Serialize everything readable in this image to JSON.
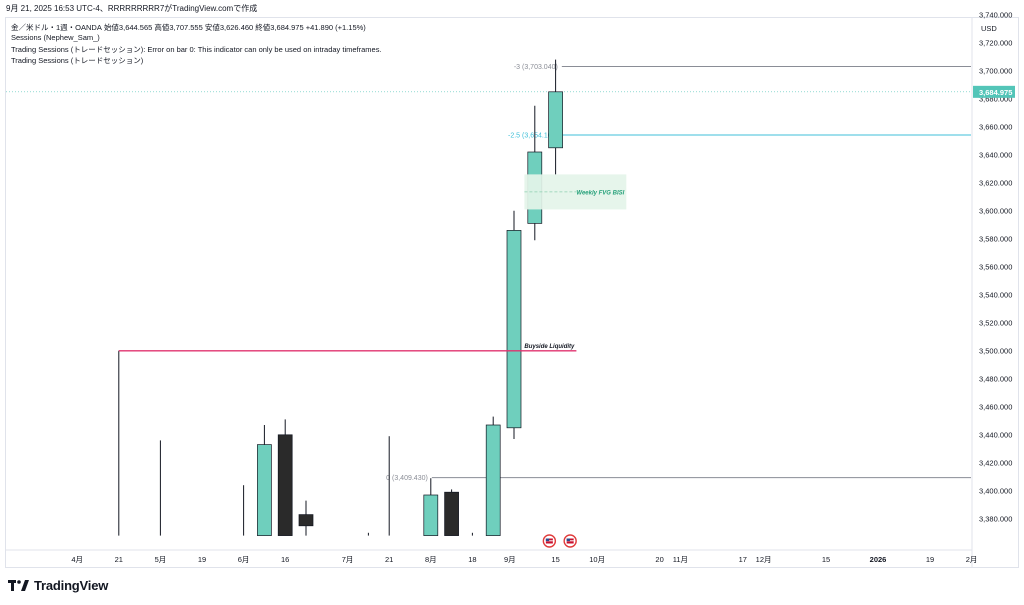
{
  "caption": "9月 21, 2025 16:53 UTC-4、RRRRRRRRR7がTradingView.comで作成",
  "legend": {
    "symbol": "金／米ドル・1週・OANDA",
    "ohlc_text": "始値3,644.565  高値3,707.555  安値3,626.460  終値3,684.975  +41.890 (+1.15%)",
    "line2": "Sessions (Nephew_Sam_)",
    "line3": "Trading Sessions (トレードセッション): Error on bar 0: This indicator can only be used on intraday timeframes.",
    "line4": "Trading Sessions (トレードセッション)"
  },
  "footer": {
    "logo_text": "TradingView"
  },
  "colors": {
    "bull": "#6fcfbd",
    "bear": "#2a2a2a",
    "liquidity": "#e0336f",
    "fib_cyan": "#3fbfd8",
    "fib_gray": "#8a8d96",
    "fvg_fill": "#e3f4e9",
    "fvg_text": "#26a17a",
    "price_tag": "#53c5b8"
  },
  "chart_data": {
    "type": "candlestick",
    "currency": "USD",
    "y_ticks": [
      3380,
      3400,
      3420,
      3440,
      3460,
      3480,
      3500,
      3520,
      3540,
      3560,
      3580,
      3600,
      3620,
      3640,
      3660,
      3680,
      3700,
      3720,
      3740
    ],
    "y_tick_labels": [
      "3,380.000",
      "3,400.000",
      "3,420.000",
      "3,440.000",
      "3,460.000",
      "3,480.000",
      "3,500.000",
      "3,520.000",
      "3,540.000",
      "3,560.000",
      "3,580.000",
      "3,600.000",
      "3,620.000",
      "3,640.000",
      "3,660.000",
      "3,680.000",
      "3,700.000",
      "3,720.000",
      "3,740.000"
    ],
    "ylim": [
      3368,
      3748
    ],
    "x_labels": [
      {
        "label": "4月",
        "slot": -1,
        "bold": false
      },
      {
        "label": "21",
        "slot": 1,
        "bold": false
      },
      {
        "label": "5月",
        "slot": 3,
        "bold": false
      },
      {
        "label": "19",
        "slot": 5,
        "bold": false
      },
      {
        "label": "6月",
        "slot": 7,
        "bold": false
      },
      {
        "label": "16",
        "slot": 9,
        "bold": false
      },
      {
        "label": "7月",
        "slot": 12,
        "bold": false
      },
      {
        "label": "21",
        "slot": 14,
        "bold": false
      },
      {
        "label": "8月",
        "slot": 16,
        "bold": false
      },
      {
        "label": "18",
        "slot": 18,
        "bold": false
      },
      {
        "label": "9月",
        "slot": 19.8,
        "bold": false
      },
      {
        "label": "15",
        "slot": 22,
        "bold": false
      },
      {
        "label": "10月",
        "slot": 24,
        "bold": false
      },
      {
        "label": "20",
        "slot": 27,
        "bold": false
      },
      {
        "label": "11月",
        "slot": 28,
        "bold": false
      },
      {
        "label": "17",
        "slot": 31,
        "bold": false
      },
      {
        "label": "12月",
        "slot": 32,
        "bold": false
      },
      {
        "label": "15",
        "slot": 35,
        "bold": false
      },
      {
        "label": "2026",
        "slot": 37.5,
        "bold": true
      },
      {
        "label": "19",
        "slot": 40,
        "bold": false
      },
      {
        "label": "2月",
        "slot": 42,
        "bold": false
      }
    ],
    "candles": [
      {
        "slot": 1,
        "open": 3368,
        "high": 3500,
        "low": 3368,
        "close": 3368,
        "dir": "wick"
      },
      {
        "slot": 3,
        "open": 3368,
        "high": 3436,
        "low": 3368,
        "close": 3368,
        "dir": "wick"
      },
      {
        "slot": 7,
        "open": 3368,
        "high": 3404,
        "low": 3368,
        "close": 3368,
        "dir": "wick"
      },
      {
        "slot": 8,
        "open": 3368,
        "high": 3447,
        "low": 3368,
        "close": 3433,
        "dir": "bull"
      },
      {
        "slot": 9,
        "open": 3440,
        "high": 3451,
        "low": 3368,
        "close": 3368,
        "dir": "bear"
      },
      {
        "slot": 10,
        "open": 3383,
        "high": 3393,
        "low": 3368,
        "close": 3375,
        "dir": "bear"
      },
      {
        "slot": 13,
        "open": 3368,
        "high": 3370,
        "low": 3368,
        "close": 3368,
        "dir": "wick"
      },
      {
        "slot": 14,
        "open": 3368,
        "high": 3439,
        "low": 3368,
        "close": 3368,
        "dir": "wick"
      },
      {
        "slot": 16,
        "open": 3368,
        "high": 3409,
        "low": 3368,
        "close": 3397,
        "dir": "bull"
      },
      {
        "slot": 17,
        "open": 3399,
        "high": 3401,
        "low": 3368,
        "close": 3368,
        "dir": "bear"
      },
      {
        "slot": 18,
        "open": 3368,
        "high": 3370,
        "low": 3368,
        "close": 3368,
        "dir": "wick"
      },
      {
        "slot": 19,
        "open": 3368,
        "high": 3453,
        "low": 3368,
        "close": 3447,
        "dir": "bull"
      },
      {
        "slot": 20,
        "open": 3445,
        "high": 3600,
        "low": 3437,
        "close": 3586,
        "dir": "bull"
      },
      {
        "slot": 21,
        "open": 3591,
        "high": 3675,
        "low": 3579,
        "close": 3642,
        "dir": "bull"
      },
      {
        "slot": 22,
        "open": 3645,
        "high": 3708,
        "low": 3626,
        "close": 3685,
        "dir": "bull"
      }
    ],
    "levels": [
      {
        "name": "fib-minus-3",
        "label": "-3 (3,703.040)",
        "value": 3703.04,
        "color": "fib_gray",
        "from_slot": 22.3
      },
      {
        "name": "fib-minus-2-5",
        "label": "-2.5 (3,654.105)",
        "value": 3654.105,
        "color": "fib_cyan",
        "from_slot": 22.3
      },
      {
        "name": "fib-0",
        "label": "0 (3,409.430)",
        "value": 3409.43,
        "color": "fib_gray",
        "from_slot": 16.05
      }
    ],
    "liquidity": {
      "label": "Buyside Liquidity",
      "value": 3500,
      "from_slot": 1,
      "to_slot": 23
    },
    "fvg": {
      "label": "Weekly FVG BISI",
      "top": 3626,
      "bottom": 3601,
      "from_slot": 20.5,
      "to_slot": 25.4
    },
    "last_price": {
      "label": "3,684.975",
      "value": 3684.975
    },
    "event_markers": [
      {
        "slot": 21.7,
        "name": "us-flag-icon"
      },
      {
        "slot": 22.7,
        "name": "us-flag-icon"
      }
    ]
  }
}
